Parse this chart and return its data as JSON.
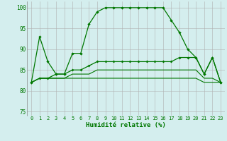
{
  "xlabel": "Humidité relative (%)",
  "xlim": [
    -0.5,
    23.5
  ],
  "ylim": [
    74,
    101.5
  ],
  "yticks": [
    75,
    80,
    85,
    90,
    95,
    100
  ],
  "xticks": [
    0,
    1,
    2,
    3,
    4,
    5,
    6,
    7,
    8,
    9,
    10,
    11,
    12,
    13,
    14,
    15,
    16,
    17,
    18,
    19,
    20,
    21,
    22,
    23
  ],
  "bg_color": "#d4eeee",
  "grid_color": "#b0b0b0",
  "line_color": "#007700",
  "line1": [
    82,
    93,
    87,
    84,
    84,
    89,
    89,
    96,
    99,
    100,
    100,
    100,
    100,
    100,
    100,
    100,
    100,
    97,
    94,
    90,
    88,
    84,
    88,
    82
  ],
  "line2": [
    82,
    83,
    83,
    84,
    84,
    85,
    85,
    86,
    87,
    87,
    87,
    87,
    87,
    87,
    87,
    87,
    87,
    87,
    88,
    88,
    88,
    84,
    88,
    82
  ],
  "line3": [
    82,
    83,
    83,
    83,
    83,
    84,
    84,
    84,
    85,
    85,
    85,
    85,
    85,
    85,
    85,
    85,
    85,
    85,
    85,
    85,
    85,
    83,
    83,
    82
  ],
  "line4": [
    82,
    83,
    83,
    83,
    83,
    83,
    83,
    83,
    83,
    83,
    83,
    83,
    83,
    83,
    83,
    83,
    83,
    83,
    83,
    83,
    83,
    82,
    82,
    82
  ]
}
